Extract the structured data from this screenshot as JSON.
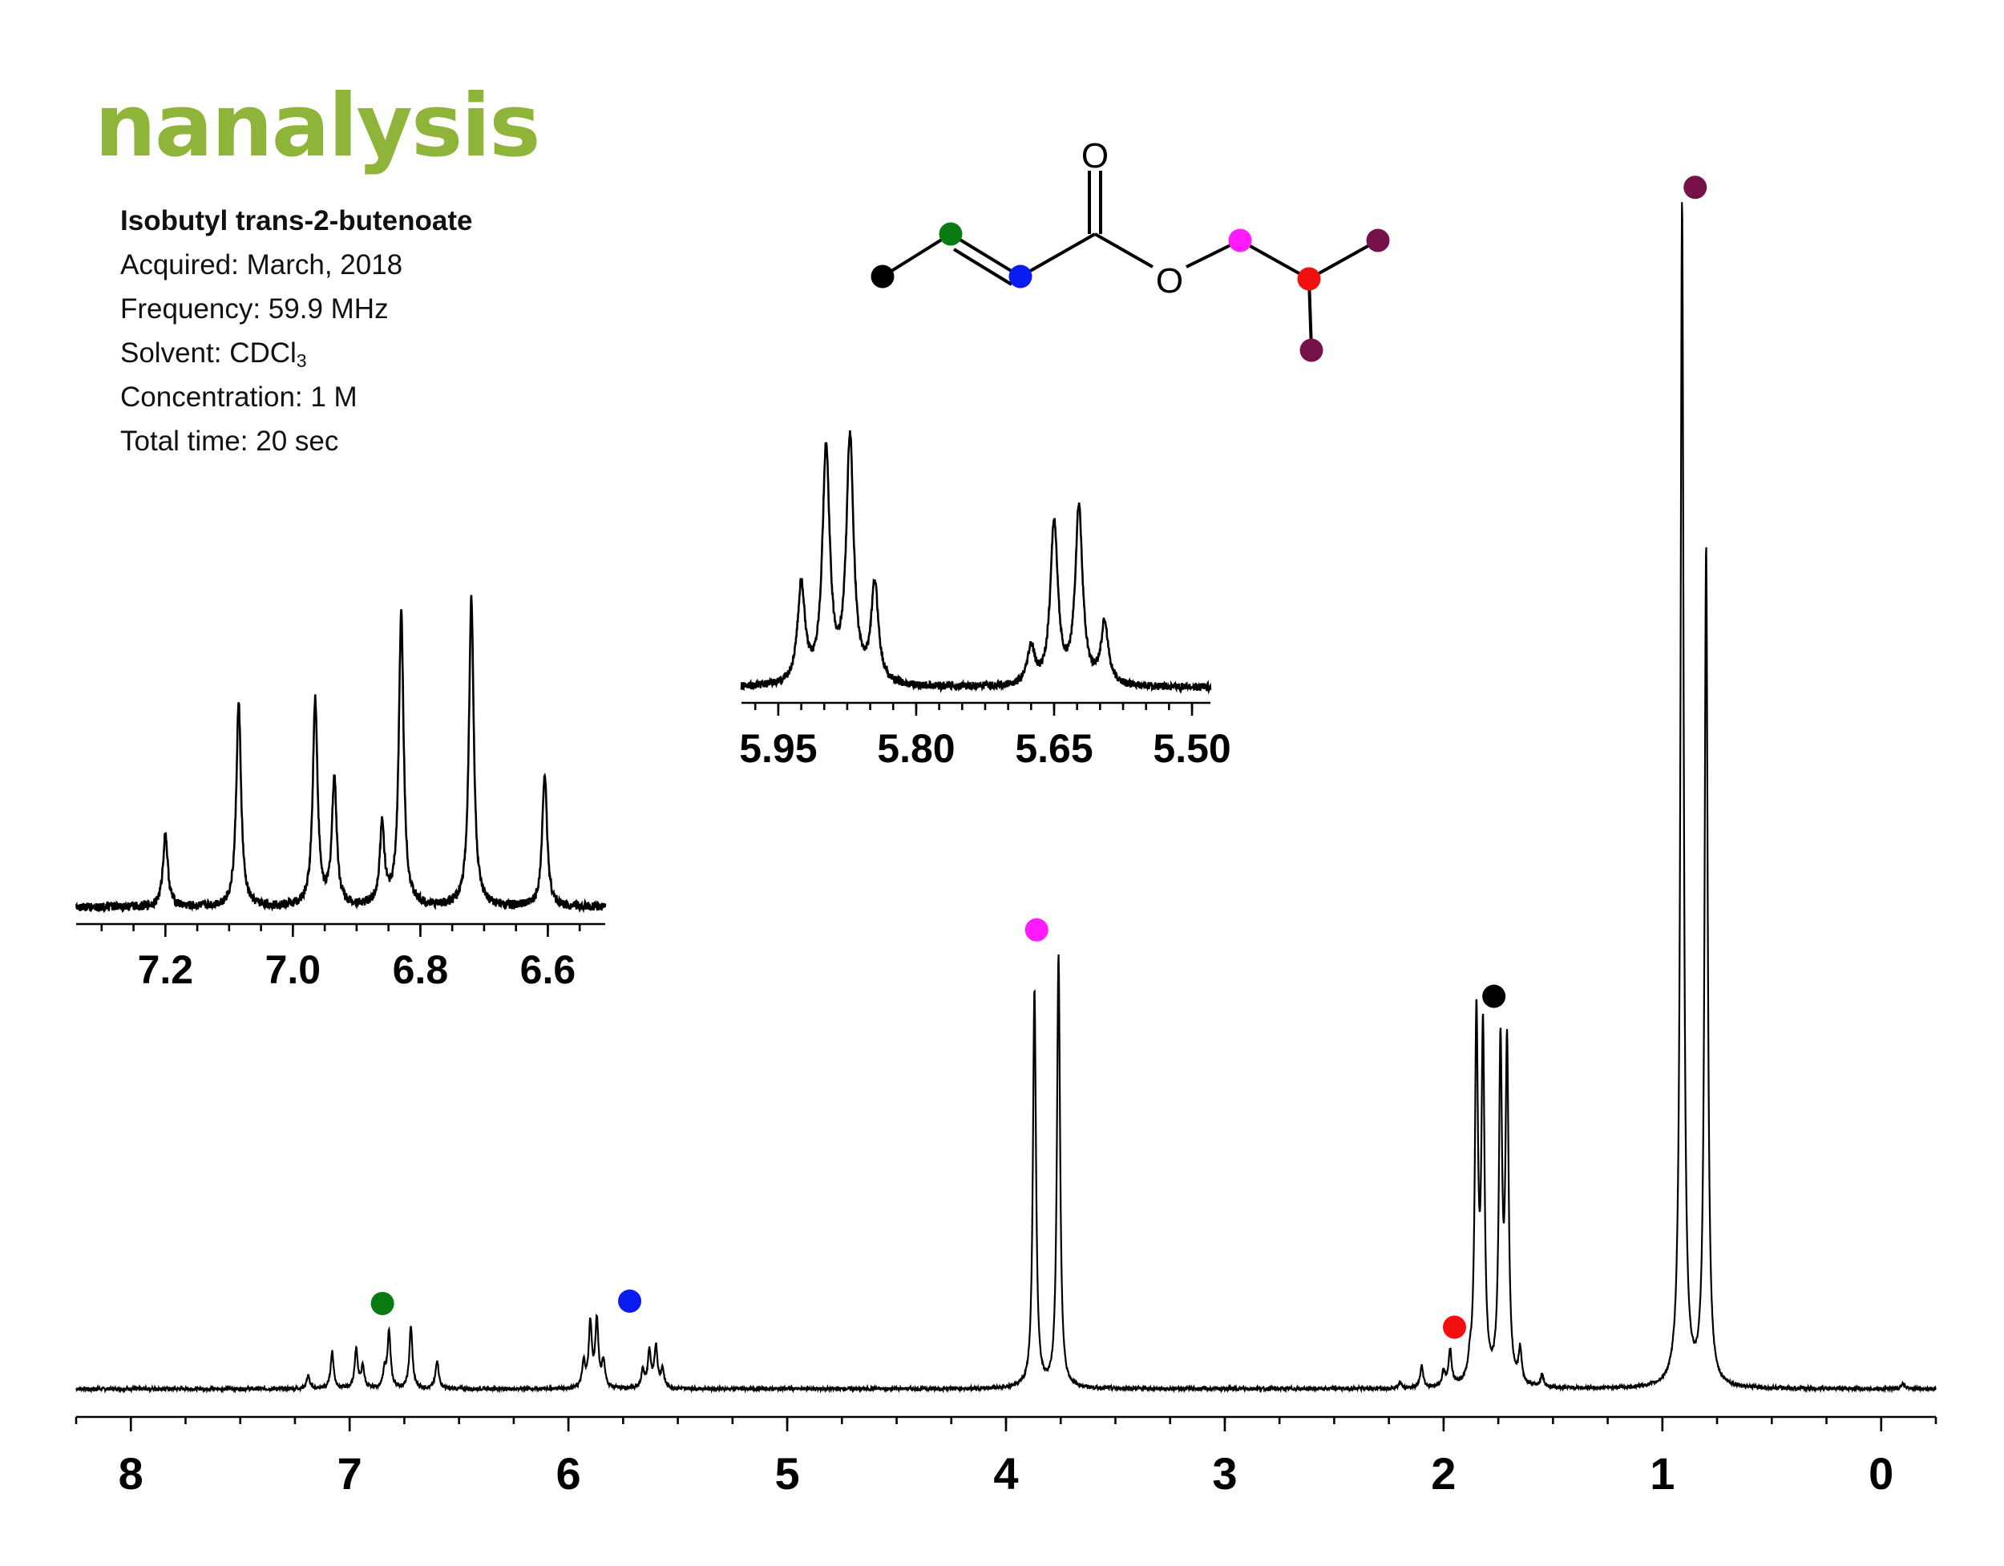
{
  "logo_text": "nanalysis",
  "colors": {
    "logo": "#8fb43a",
    "black": "#000000",
    "green": "#0a7a12",
    "blue": "#0a1cf2",
    "magenta": "#ff1aff",
    "red": "#f20f0f",
    "maroon": "#76114a"
  },
  "info": {
    "compound": "Isobutyl trans-2-butenoate",
    "acquired": "Acquired: March, 2018",
    "frequency": "Frequency: 59.9 MHz",
    "solvent_prefix": "Solvent: CDCl",
    "solvent_subscript": "3",
    "concentration": "Concentration: 1 M",
    "total_time": "Total time: 20 sec"
  },
  "molecule": {
    "carbonyl_O": "O",
    "ester_O": "O"
  },
  "chart_data": [
    {
      "type": "line",
      "name": "main_spectrum",
      "xlim": [
        8.25,
        -0.25
      ],
      "x_ticks": [
        8,
        7,
        6,
        5,
        4,
        3,
        2,
        1,
        0
      ],
      "tick_labels": [
        "8",
        "7",
        "6",
        "5",
        "4",
        "3",
        "2",
        "1",
        "0"
      ],
      "grid": false,
      "peaks": [
        {
          "ppm": 7.19,
          "height": 0.011
        },
        {
          "ppm": 7.08,
          "height": 0.031
        },
        {
          "ppm": 6.97,
          "height": 0.033
        },
        {
          "ppm": 6.94,
          "height": 0.018
        },
        {
          "ppm": 6.84,
          "height": 0.014
        },
        {
          "ppm": 6.82,
          "height": 0.047
        },
        {
          "ppm": 6.72,
          "height": 0.052
        },
        {
          "ppm": 6.6,
          "height": 0.024
        },
        {
          "ppm": 5.93,
          "height": 0.021
        },
        {
          "ppm": 5.9,
          "height": 0.054
        },
        {
          "ppm": 5.87,
          "height": 0.056
        },
        {
          "ppm": 5.84,
          "height": 0.022
        },
        {
          "ppm": 5.66,
          "height": 0.015
        },
        {
          "ppm": 5.63,
          "height": 0.031
        },
        {
          "ppm": 5.6,
          "height": 0.035
        },
        {
          "ppm": 5.57,
          "height": 0.016
        },
        {
          "ppm": 3.87,
          "height": 0.335
        },
        {
          "ppm": 3.76,
          "height": 0.365
        },
        {
          "ppm": 2.2,
          "height": 0.005
        },
        {
          "ppm": 2.1,
          "height": 0.018
        },
        {
          "ppm": 2.0,
          "height": 0.012
        },
        {
          "ppm": 1.97,
          "height": 0.03
        },
        {
          "ppm": 1.88,
          "height": 0.012
        },
        {
          "ppm": 1.85,
          "height": 0.305
        },
        {
          "ppm": 1.82,
          "height": 0.29
        },
        {
          "ppm": 1.74,
          "height": 0.28
        },
        {
          "ppm": 1.71,
          "height": 0.28
        },
        {
          "ppm": 1.65,
          "height": 0.028
        },
        {
          "ppm": 1.55,
          "height": 0.01
        },
        {
          "ppm": 0.91,
          "height": 1.0
        },
        {
          "ppm": 0.8,
          "height": 0.707
        },
        {
          "ppm": -0.1,
          "height": 0.005
        }
      ],
      "markers": [
        {
          "color": "green",
          "ppm": 6.85,
          "level": 0.072
        },
        {
          "color": "blue",
          "ppm": 5.72,
          "level": 0.074
        },
        {
          "color": "magenta",
          "ppm": 3.86,
          "level": 0.387
        },
        {
          "color": "black",
          "ppm": 1.77,
          "level": 0.331
        },
        {
          "color": "red",
          "ppm": 1.95,
          "level": 0.052
        },
        {
          "color": "maroon",
          "ppm": 0.85,
          "level": 1.013
        }
      ]
    },
    {
      "type": "line",
      "name": "inset_vinyl_6_6_to_7_2",
      "xlim": [
        7.34,
        6.51
      ],
      "x_ticks": [
        7.2,
        7.0,
        6.8,
        6.6
      ],
      "tick_labels": [
        "7.2",
        "7.0",
        "6.8",
        "6.6"
      ],
      "grid": false,
      "peaks": [
        {
          "ppm": 7.2,
          "height": 0.23
        },
        {
          "ppm": 7.085,
          "height": 0.64
        },
        {
          "ppm": 6.965,
          "height": 0.65
        },
        {
          "ppm": 6.935,
          "height": 0.4
        },
        {
          "ppm": 6.86,
          "height": 0.25
        },
        {
          "ppm": 6.83,
          "height": 0.92
        },
        {
          "ppm": 6.72,
          "height": 0.97
        },
        {
          "ppm": 6.605,
          "height": 0.42
        }
      ]
    },
    {
      "type": "line",
      "name": "inset_vinyl_5_5_to_6_0",
      "xlim": [
        5.99,
        5.48
      ],
      "x_ticks": [
        5.95,
        5.8,
        5.65,
        5.5
      ],
      "tick_labels": [
        "5.95",
        "5.80",
        "5.65",
        "5.50"
      ],
      "grid": false,
      "peaks": [
        {
          "ppm": 5.925,
          "height": 0.35
        },
        {
          "ppm": 5.898,
          "height": 0.83
        },
        {
          "ppm": 5.872,
          "height": 0.87
        },
        {
          "ppm": 5.845,
          "height": 0.35
        },
        {
          "ppm": 5.675,
          "height": 0.13
        },
        {
          "ppm": 5.65,
          "height": 0.58
        },
        {
          "ppm": 5.623,
          "height": 0.63
        },
        {
          "ppm": 5.595,
          "height": 0.22
        }
      ]
    }
  ]
}
